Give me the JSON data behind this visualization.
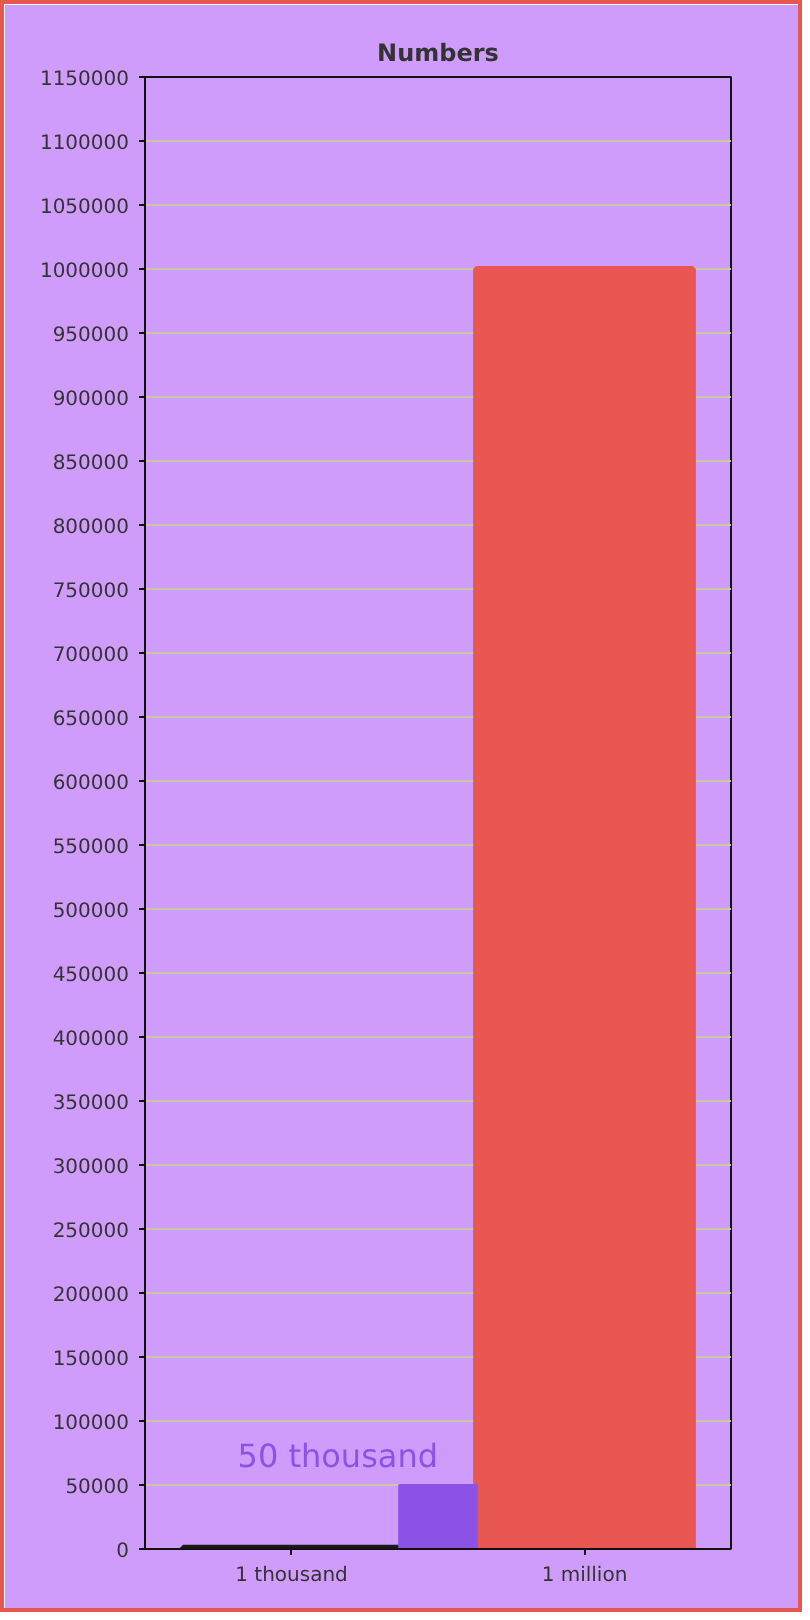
{
  "chart_data": {
    "type": "bar",
    "title": "Numbers",
    "categories": [
      "1 thousand",
      "1 million"
    ],
    "series": [
      {
        "colors": [
          "#1a1a1a",
          "#e85752"
        ],
        "values": [
          1000,
          1000000
        ]
      },
      {
        "color": "#8c52e6",
        "values": [
          50000,
          null
        ]
      }
    ],
    "ylim": [
      0,
      1150000
    ],
    "yticks": [
      0,
      50000,
      100000,
      150000,
      200000,
      250000,
      300000,
      350000,
      400000,
      450000,
      500000,
      550000,
      600000,
      650000,
      700000,
      750000,
      800000,
      850000,
      900000,
      950000,
      1000000,
      1050000,
      1100000,
      1150000
    ],
    "grid": "y",
    "annotations": [
      "50 thousand"
    ]
  }
}
